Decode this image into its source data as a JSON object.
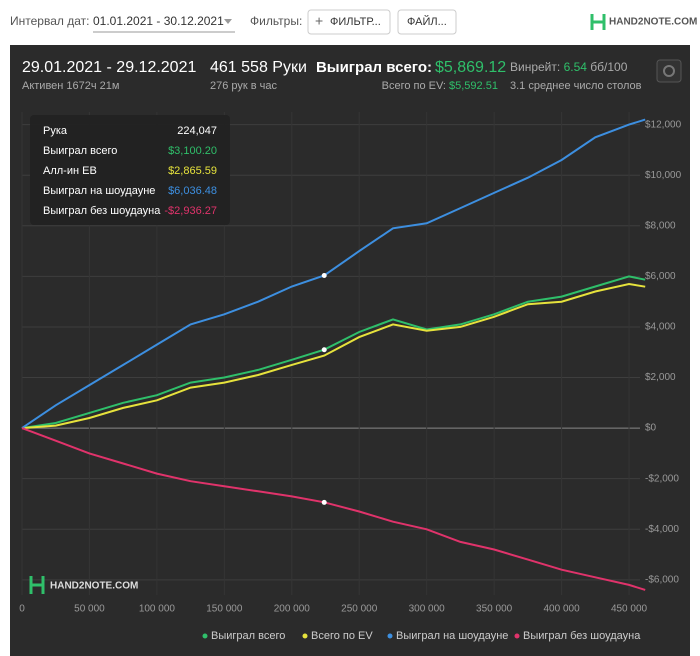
{
  "toolbar": {
    "date_label": "Интервал дат:",
    "date_range": "01.01.2021 - 30.12.2021",
    "filters_label": "Фильтры:",
    "filter_button": "ФИЛЬТР...",
    "file_button": "ФАЙЛ...",
    "logo": "HAND2NOTE.COM"
  },
  "summary": {
    "period": "29.01.2021 - 29.12.2021",
    "active": "Активен 1672ч 21м",
    "hands": "461 558 Руки",
    "hands_per_hour": "276 рук в час",
    "won_label": "Выиграл всего:",
    "won_value": "$5,869.12",
    "ev_label": "Всего по EV:",
    "ev_value": "$5,592.51",
    "winrate_label": "Винрейт:",
    "winrate_value": "6.54",
    "winrate_unit": "бб/100",
    "tables": "3.1 среднее число столов"
  },
  "tooltip": {
    "rows": [
      {
        "label": "Рука",
        "value": "224,047"
      },
      {
        "label": "Выиграл всего",
        "value": "$3,100.20"
      },
      {
        "label": "Алл-ин ЕВ",
        "value": "$2,865.59"
      },
      {
        "label": "Выиграл на шоудауне",
        "value": "$6,036.48"
      },
      {
        "label": "Выиграл без шоудауна",
        "value": "-$2,936.27"
      }
    ]
  },
  "watermark": "HAND2NOTE.COM",
  "chart_data": {
    "type": "line",
    "grid": true,
    "x": [
      0,
      25000,
      50000,
      75000,
      100000,
      125000,
      150000,
      175000,
      200000,
      224047,
      250000,
      275000,
      300000,
      325000,
      350000,
      375000,
      400000,
      425000,
      450000,
      462000
    ],
    "series": [
      {
        "name": "Выиграл всего",
        "color": "#2fbf6a",
        "values": [
          0,
          200,
          600,
          1000,
          1300,
          1800,
          2000,
          2300,
          2700,
          3100,
          3800,
          4300,
          3900,
          4100,
          4500,
          5000,
          5200,
          5600,
          6000,
          5869
        ]
      },
      {
        "name": "Всего по EV",
        "color": "#e6e23c",
        "values": [
          0,
          100,
          400,
          800,
          1100,
          1600,
          1800,
          2100,
          2500,
          2865,
          3600,
          4100,
          3850,
          4000,
          4400,
          4900,
          5000,
          5400,
          5700,
          5592
        ]
      },
      {
        "name": "Выиграл на шоудауне",
        "color": "#3d8fe0",
        "values": [
          0,
          900,
          1700,
          2500,
          3300,
          4100,
          4500,
          5000,
          5600,
          6036,
          7000,
          7900,
          8100,
          8700,
          9300,
          9900,
          10600,
          11500,
          12000,
          12200
        ]
      },
      {
        "name": "Выиграл без шоудауна",
        "color": "#e0336b",
        "values": [
          0,
          -500,
          -1000,
          -1400,
          -1800,
          -2100,
          -2300,
          -2500,
          -2700,
          -2936,
          -3300,
          -3700,
          -4000,
          -4500,
          -4800,
          -5200,
          -5600,
          -5900,
          -6200,
          -6400
        ]
      }
    ],
    "xlim": [
      0,
      470000
    ],
    "xticks": [
      0,
      {
        "value": 50000,
        "label": "50 000"
      },
      {
        "value": 100000,
        "label": "100 000"
      },
      {
        "value": 150000,
        "label": "150 000"
      },
      {
        "value": 200000,
        "label": "200 000"
      },
      {
        "value": 250000,
        "label": "250 000"
      },
      {
        "value": 300000,
        "label": "300 000"
      },
      {
        "value": 350000,
        "label": "350 000"
      },
      {
        "value": 400000,
        "label": "400 000"
      },
      {
        "value": 450000,
        "label": "450 000"
      }
    ],
    "ylim": [
      -6600,
      12500
    ],
    "yticks": [
      {
        "value": -6000,
        "label": "-$6,000"
      },
      {
        "value": -4000,
        "label": "-$4,000"
      },
      {
        "value": -2000,
        "label": "-$2,000"
      },
      {
        "value": 0,
        "label": "$0"
      },
      {
        "value": 2000,
        "label": "$2,000"
      },
      {
        "value": 4000,
        "label": "$4,000"
      },
      {
        "value": 6000,
        "label": "$6,000"
      },
      {
        "value": 8000,
        "label": "$8,000"
      },
      {
        "value": 10000,
        "label": "$10,000"
      },
      {
        "value": 12000,
        "label": "$12,000"
      }
    ]
  }
}
